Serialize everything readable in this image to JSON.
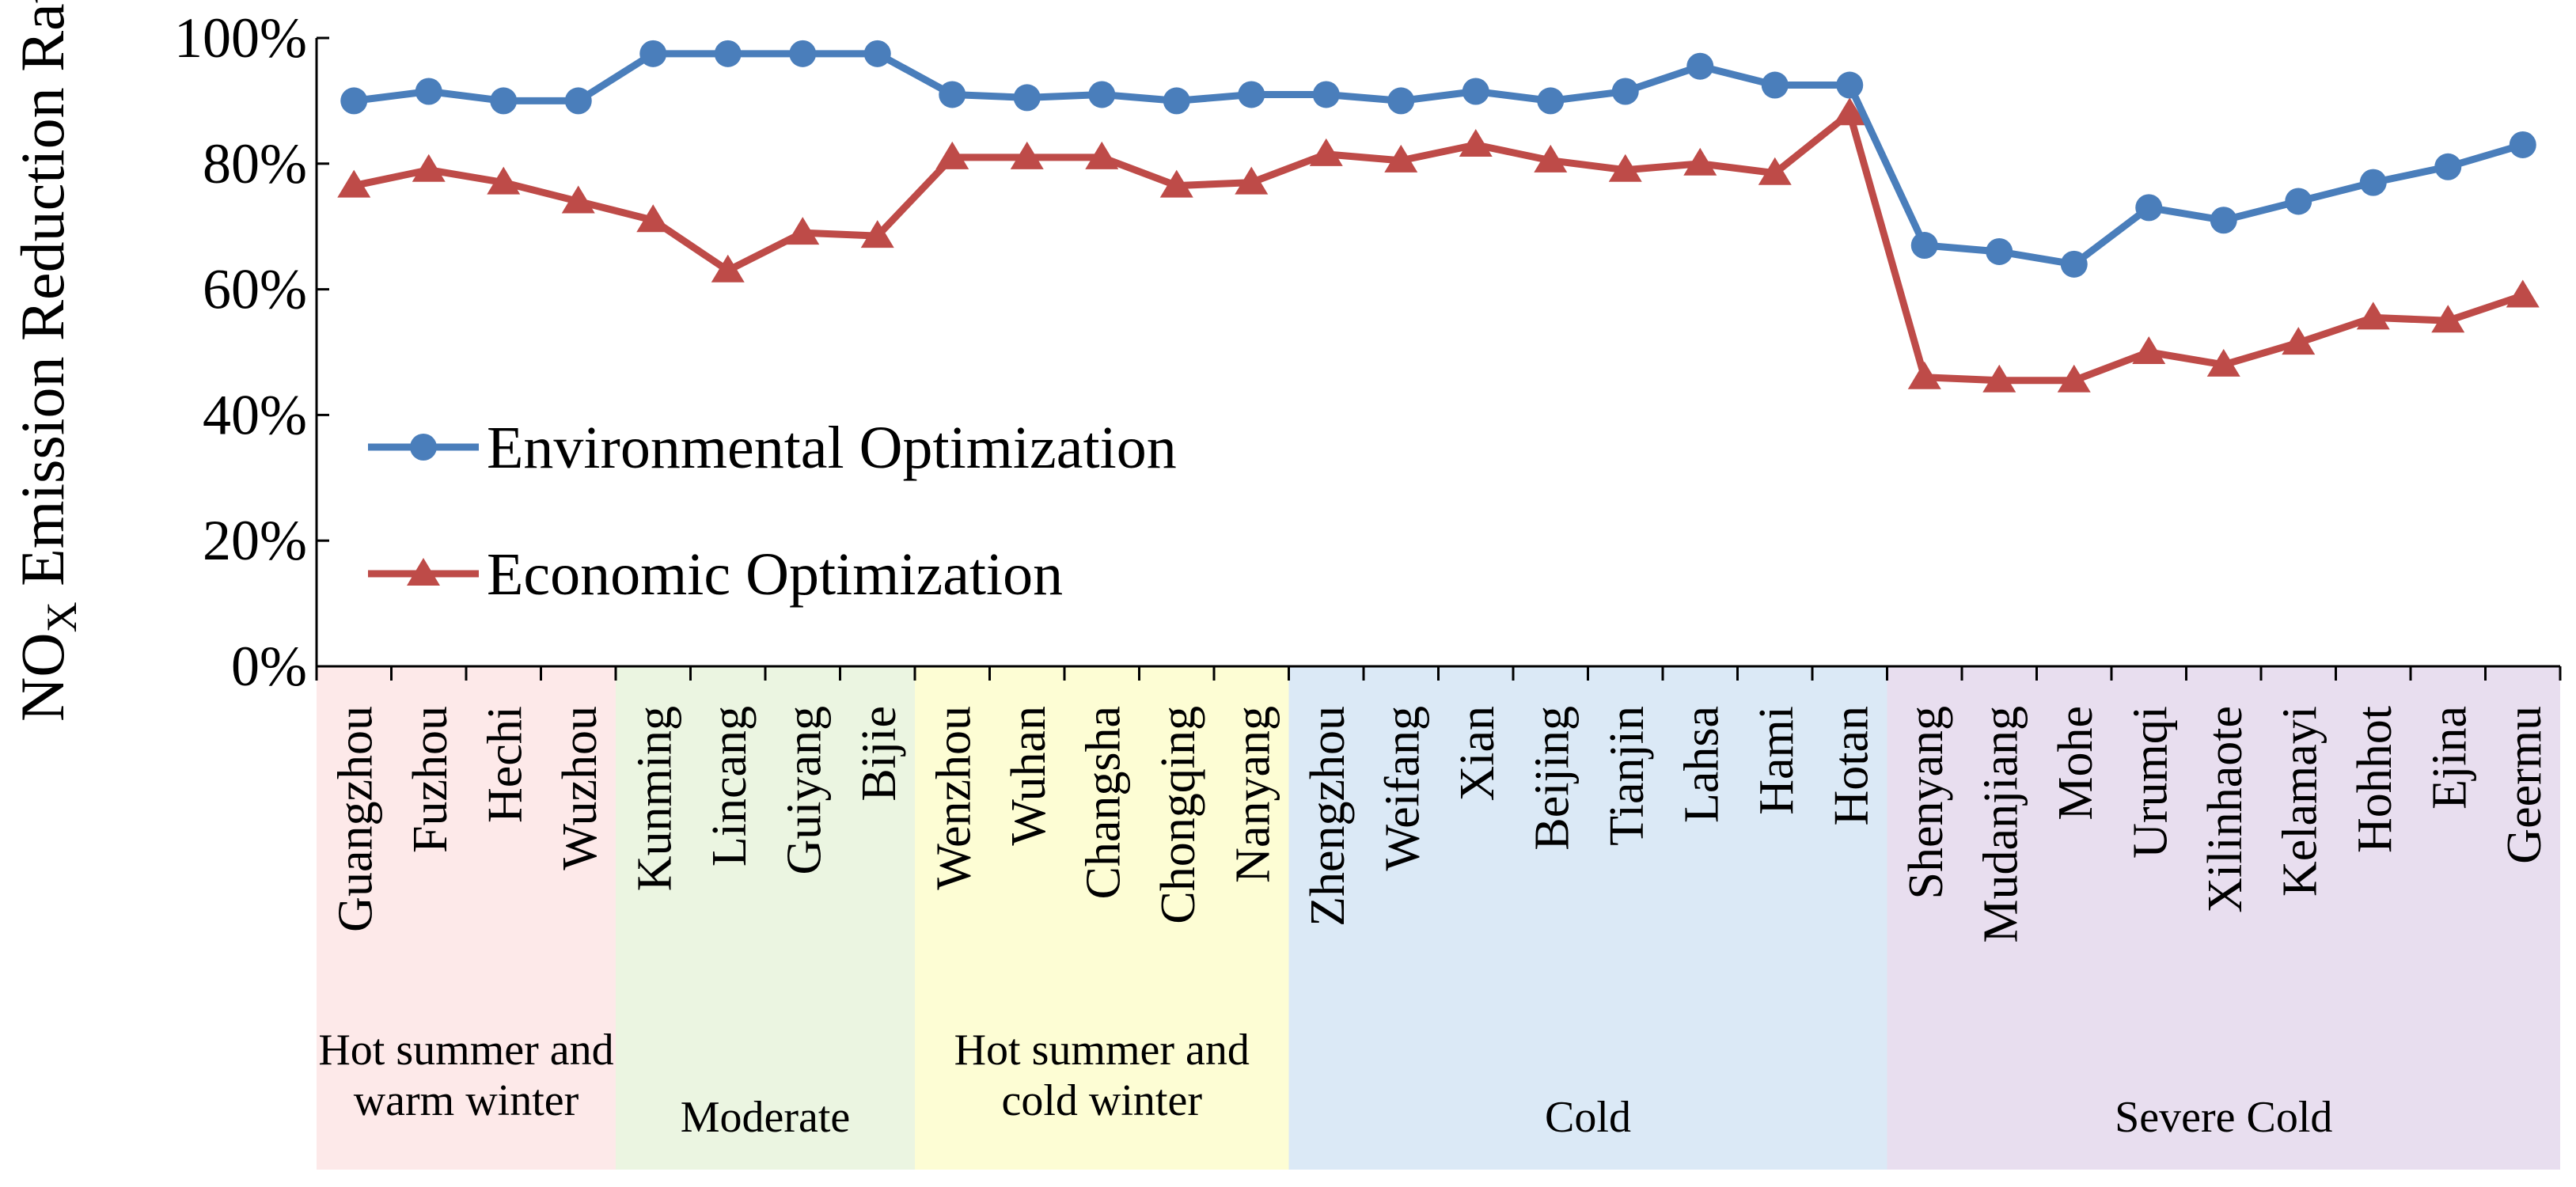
{
  "chart_data": {
    "type": "line",
    "ylabel": "NOx Emission Reduction Rate",
    "ylabel_main": "NO",
    "ylabel_sub": "X",
    "ylabel_rest": " Emission Reduction Rate",
    "ylim": [
      0,
      100
    ],
    "yticks": [
      {
        "value": 0,
        "label": "0%"
      },
      {
        "value": 20,
        "label": "20%"
      },
      {
        "value": 40,
        "label": "40%"
      },
      {
        "value": 60,
        "label": "60%"
      },
      {
        "value": 80,
        "label": "80%"
      },
      {
        "value": 100,
        "label": "100%"
      }
    ],
    "grid": false,
    "legend_position": "lower-left",
    "categories": [
      "Guangzhou",
      "Fuzhou",
      "Hechi",
      "Wuzhou",
      "Kunming",
      "Lincang",
      "Guiyang",
      "Bijie",
      "Wenzhou",
      "Wuhan",
      "Changsha",
      "Chongqing",
      "Nanyang",
      "Zhengzhou",
      "Weifang",
      "Xian",
      "Beijing",
      "Tianjin",
      "Lahsa",
      "Hami",
      "Hotan",
      "Shenyang",
      "Mudanjiang",
      "Mohe",
      "Urumqi",
      "Xilinhaote",
      "Kelamayi",
      "Hohhot",
      "Ejina",
      "Geermu"
    ],
    "series": [
      {
        "name": "Environmental Optimization",
        "color": "#4a7ebb",
        "marker": "circle",
        "values": [
          90,
          91.5,
          90,
          90,
          97.5,
          97.5,
          97.5,
          97.5,
          91,
          90.5,
          91,
          90,
          91,
          91,
          90,
          91.5,
          90,
          91.5,
          95.5,
          92.5,
          92.5,
          67,
          66,
          64,
          73,
          71,
          74,
          77,
          79.5,
          83
        ]
      },
      {
        "name": "Economic Optimization",
        "color": "#be4b48",
        "marker": "triangle",
        "values": [
          76.5,
          79,
          77,
          74,
          71,
          63,
          69,
          68.5,
          81,
          81,
          81,
          76.5,
          77,
          81.5,
          80.5,
          83,
          80.5,
          79,
          80,
          78.5,
          88,
          46,
          45.5,
          45.5,
          50,
          48,
          51.5,
          55.5,
          55,
          59
        ]
      }
    ],
    "zones": [
      {
        "lines": [
          "Hot summer and",
          "warm winter"
        ],
        "color": "#fde9e9",
        "count": 4
      },
      {
        "lines": [
          "Moderate"
        ],
        "color": "#ebf5e1",
        "count": 4
      },
      {
        "lines": [
          "Hot summer and",
          "cold winter"
        ],
        "color": "#fdfdd4",
        "count": 5
      },
      {
        "lines": [
          "Cold"
        ],
        "color": "#dbe9f6",
        "count": 8
      },
      {
        "lines": [
          "Severe Cold"
        ],
        "color": "#e8deef",
        "count": 9
      }
    ]
  }
}
